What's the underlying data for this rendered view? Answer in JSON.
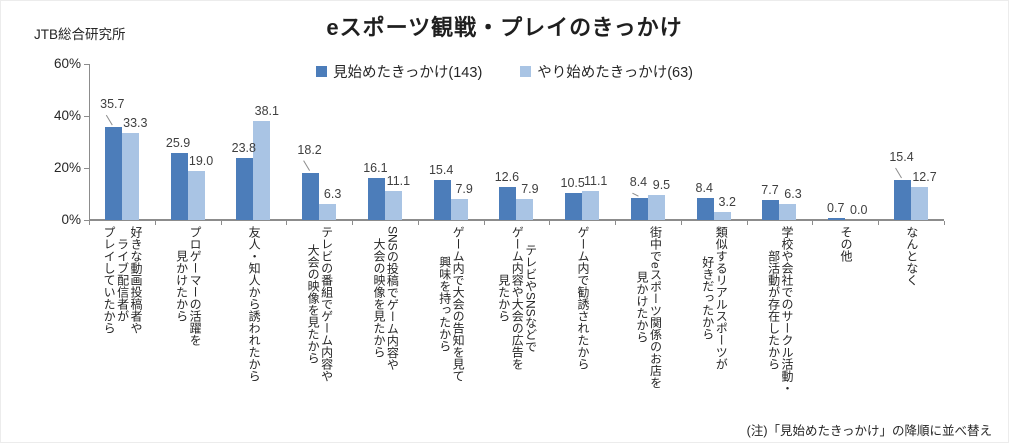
{
  "source_label": "JTB総合研究所",
  "note": "(注)「見始めたきっかけ」の降順に並べ替え",
  "chart_data": {
    "type": "bar",
    "title": "eスポーツ観戦・プレイのきっかけ",
    "xlabel": "",
    "ylabel": "",
    "ylim": [
      0,
      60
    ],
    "y_ticks": [
      {
        "label": "0%",
        "value": 0
      },
      {
        "label": "20%",
        "value": 20
      },
      {
        "label": "40%",
        "value": 40
      },
      {
        "label": "60%",
        "value": 60
      }
    ],
    "grid": false,
    "legend_position": "top-center",
    "value_labels_decimals": 1,
    "series": [
      {
        "name": "見始めたきっかけ(143)",
        "color": "#4c7dba",
        "values": [
          35.7,
          25.9,
          23.8,
          18.2,
          16.1,
          15.4,
          12.6,
          10.5,
          8.4,
          8.4,
          7.7,
          0.7,
          15.4
        ]
      },
      {
        "name": "やり始めたきっかけ(63)",
        "color": "#a9c4e4",
        "values": [
          33.3,
          19.0,
          38.1,
          6.3,
          11.1,
          7.9,
          7.9,
          11.1,
          9.5,
          3.2,
          6.3,
          0.0,
          12.7
        ]
      }
    ],
    "categories": [
      "好きな動画投稿者や\nライブ配信者が\nプレイしていたから",
      "プロゲーマーの活躍を\n見かけたから",
      "友人・知人から誘われたから",
      "テレビの番組でゲーム内容や\n大会の映像を見たから",
      "SNSの投稿でゲーム内容や\n大会の映像を見たから",
      "ゲーム内で大会の告知を見て\n興味を持ったから",
      "テレビやSNSなどで\nゲーム内容や大会の広告を\n見たから",
      "ゲーム内で勧誘されたから",
      "街中でeスポーツ関係のお店を\n見かけたから",
      "類似するリアルスポーツが\n好きだったから",
      "学校や会社でのサークル活動・\n部活動が存在したから",
      "その他",
      "なんとなく"
    ]
  }
}
